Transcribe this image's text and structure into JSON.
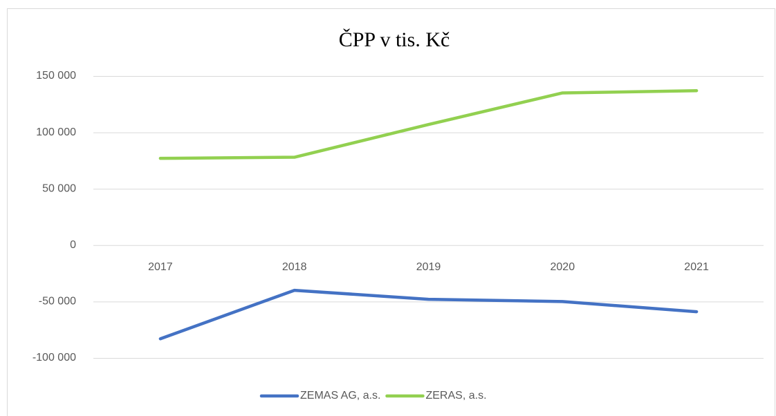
{
  "chart_data": {
    "type": "line",
    "title": "ČPP v tis. Kč",
    "categories": [
      "2017",
      "2018",
      "2019",
      "2020",
      "2021"
    ],
    "series": [
      {
        "name": "ZEMAS AG, a.s.",
        "color": "#4472c4",
        "values": [
          -83000,
          -40000,
          -48000,
          -50000,
          -59000
        ]
      },
      {
        "name": "ZERAS, a.s.",
        "color": "#92d050",
        "values": [
          77000,
          78000,
          107000,
          135000,
          137000
        ]
      }
    ],
    "ylim": [
      -100000,
      150000
    ],
    "yticks": [
      {
        "value": -100000,
        "label": "-100 000"
      },
      {
        "value": -50000,
        "label": "-50 000"
      },
      0,
      {
        "value": 50000,
        "label": "50 000"
      },
      {
        "value": 100000,
        "label": "100 000"
      },
      {
        "value": 150000,
        "label": "150 000"
      }
    ],
    "grid": true,
    "legend": "bottom"
  }
}
